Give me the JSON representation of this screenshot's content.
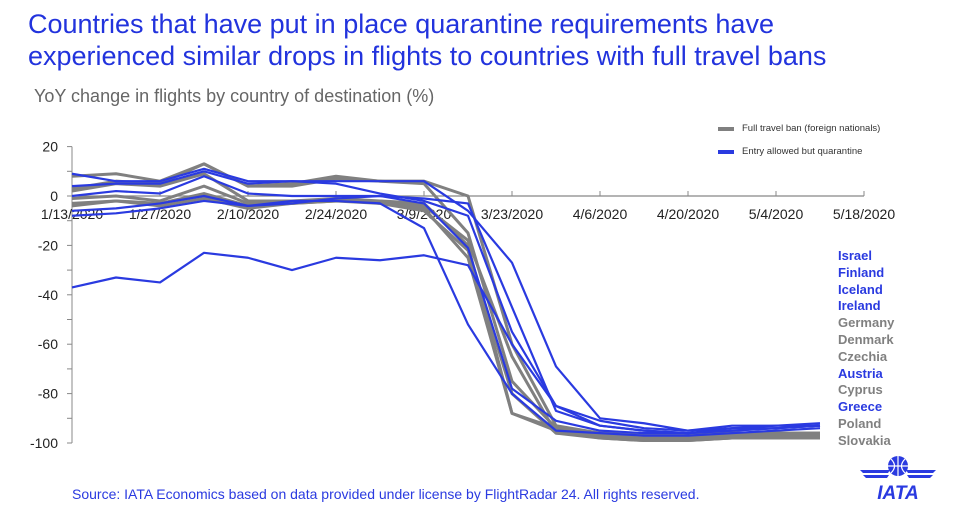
{
  "title_line1": "Countries that have put in place quarantine requirements have",
  "title_line2": "experienced similar drops in flights to countries with full travel bans",
  "source": "Source: IATA Economics based on data provided under license by FlightRadar 24. All rights reserved.",
  "logo_text": "IATA",
  "colors": {
    "full_ban": "#808080",
    "quarantine": "#2a3ae0",
    "title": "#2233dd"
  },
  "chart_data": {
    "type": "line",
    "title": "",
    "ylabel": "YoY change in flights by country of destination (%)",
    "ylim": [
      -100,
      20
    ],
    "yticks": [
      20,
      0,
      -20,
      -40,
      -60,
      -80,
      -100
    ],
    "xtick_labels": [
      "1/13/2020",
      "1/27/2020",
      "2/10/2020",
      "2/24/2020",
      "3/9/2020",
      "3/23/2020",
      "4/6/2020",
      "4/20/2020",
      "5/4/2020",
      "5/18/2020"
    ],
    "x": [
      "1/13/2020",
      "1/20/2020",
      "1/27/2020",
      "2/3/2020",
      "2/10/2020",
      "2/17/2020",
      "2/24/2020",
      "3/2/2020",
      "3/9/2020",
      "3/16/2020",
      "3/23/2020",
      "3/30/2020",
      "4/6/2020",
      "4/13/2020",
      "4/20/2020",
      "4/27/2020",
      "5/4/2020",
      "5/11/2020"
    ],
    "legend": [
      {
        "label": "Full travel ban (foreign nationals)",
        "group": "full_ban"
      },
      {
        "label": "Entry allowed but quarantine",
        "group": "quarantine"
      }
    ],
    "legend_position": "top-right",
    "series": [
      {
        "name": "Israel",
        "group": "quarantine",
        "values": [
          -37,
          -33,
          -35,
          -23,
          -25,
          -30,
          -25,
          -26,
          -24,
          -28,
          -60,
          -85,
          -93,
          -95,
          -96,
          -94,
          -93,
          -93
        ]
      },
      {
        "name": "Finland",
        "group": "quarantine",
        "values": [
          9,
          6,
          6,
          11,
          6,
          6,
          6,
          6,
          6,
          -6,
          -27,
          -69,
          -90,
          -92,
          -95,
          -94,
          -94,
          -93
        ]
      },
      {
        "name": "Iceland",
        "group": "quarantine",
        "values": [
          4,
          5,
          5,
          10,
          5,
          6,
          5,
          1,
          -2,
          -8,
          -55,
          -85,
          -91,
          -94,
          -95,
          -93,
          -93,
          -92
        ]
      },
      {
        "name": "Ireland",
        "group": "quarantine",
        "values": [
          0,
          2,
          1,
          8,
          1,
          0,
          0,
          0,
          -1,
          -3,
          -45,
          -87,
          -93,
          -95,
          -96,
          -95,
          -94,
          -93
        ]
      },
      {
        "name": "Germany",
        "group": "full_ban",
        "values": [
          3,
          6,
          5,
          13,
          4,
          4,
          7,
          6,
          5,
          -15,
          -75,
          -94,
          -97,
          -98,
          -98,
          -97,
          -97,
          -97
        ]
      },
      {
        "name": "Denmark",
        "group": "full_ban",
        "values": [
          8,
          9,
          6,
          13,
          4,
          5,
          8,
          6,
          6,
          0,
          -60,
          -93,
          -96,
          -97,
          -97,
          -96,
          -96,
          -96
        ]
      },
      {
        "name": "Czechia",
        "group": "full_ban",
        "values": [
          -1,
          0,
          -2,
          4,
          -3,
          -3,
          -2,
          -2,
          -3,
          -20,
          -88,
          -95,
          -98,
          -99,
          -99,
          -98,
          -98,
          -98
        ]
      },
      {
        "name": "Austria",
        "group": "quarantine",
        "values": [
          -6,
          -5,
          -3,
          0,
          -4,
          -2,
          -2,
          -3,
          -13,
          -52,
          -80,
          -95,
          -96,
          -97,
          -97,
          -96,
          -95,
          -94
        ]
      },
      {
        "name": "Cyprus",
        "group": "full_ban",
        "values": [
          -3,
          -2,
          -3,
          1,
          -4,
          -3,
          -1,
          -2,
          -5,
          -25,
          -88,
          -94,
          -96,
          -97,
          -97,
          -96,
          -96,
          -96
        ]
      },
      {
        "name": "Greece",
        "group": "quarantine",
        "values": [
          -8,
          -7,
          -5,
          -2,
          -4,
          -3,
          -1,
          0,
          -3,
          -21,
          -78,
          -91,
          -95,
          -96,
          -96,
          -95,
          -94,
          -93
        ]
      },
      {
        "name": "Poland",
        "group": "full_ban",
        "values": [
          2,
          5,
          4,
          9,
          -2,
          -2,
          -1,
          -3,
          -4,
          -18,
          -65,
          -96,
          -98,
          -99,
          -99,
          -98,
          -98,
          -98
        ]
      },
      {
        "name": "Slovakia",
        "group": "full_ban",
        "values": [
          -4,
          -2,
          -4,
          -1,
          -5,
          -3,
          -2,
          -3,
          -6,
          -22,
          -80,
          -96,
          -97,
          -98,
          -98,
          -97,
          -97,
          -97
        ]
      }
    ]
  }
}
